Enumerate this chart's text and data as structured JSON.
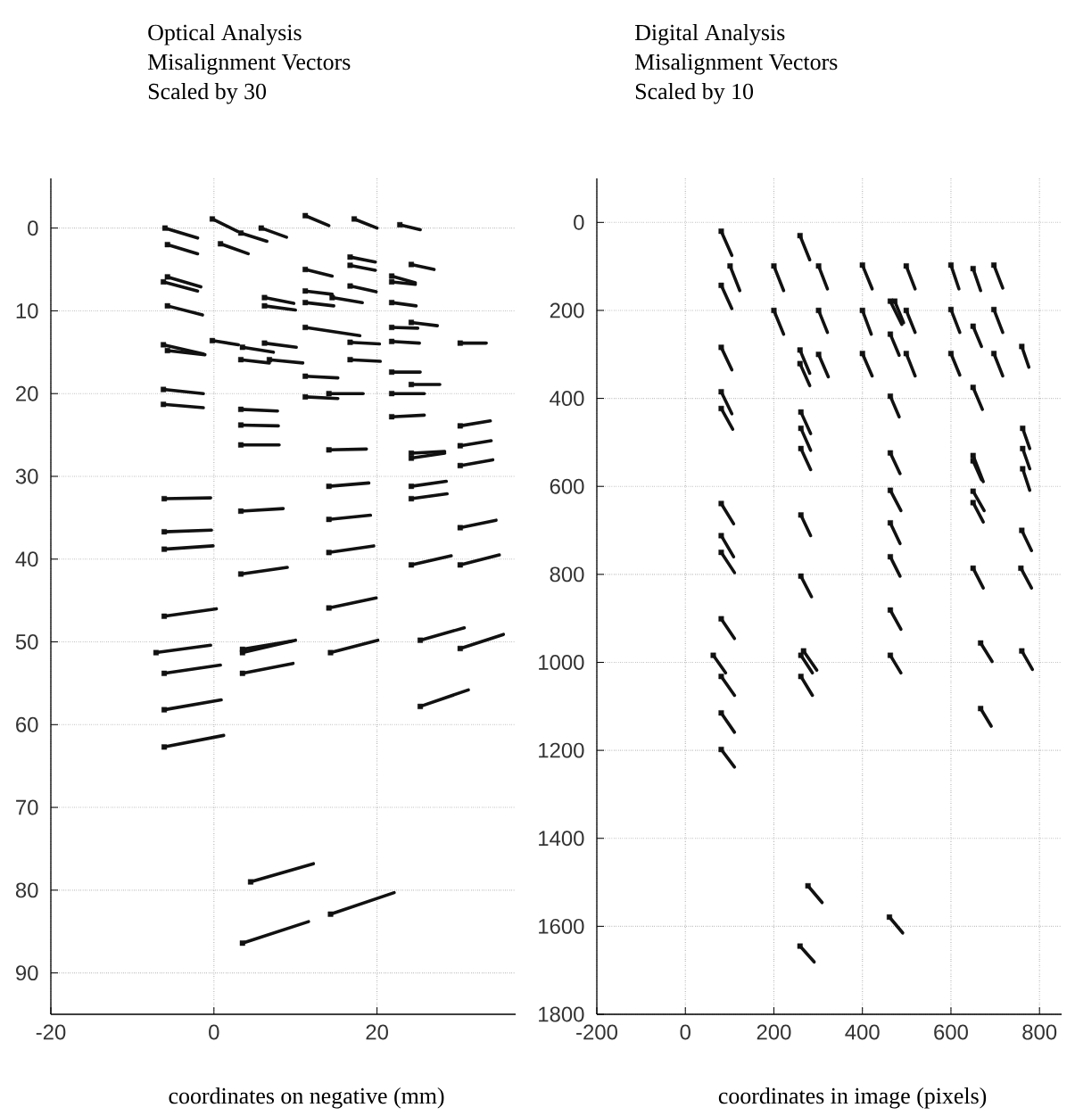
{
  "chart_data": [
    {
      "type": "line",
      "title": "Optical Analysis",
      "subtitle": "Misalignment Vectors",
      "annotations": [
        "Scaled by 30"
      ],
      "xlabel": "coordinates on negative (mm)",
      "color": "#111111",
      "xlim": [
        -20,
        37
      ],
      "ylim": [
        95,
        -6
      ],
      "xticks": [
        -20,
        0,
        20
      ],
      "yticks": [
        0,
        10,
        20,
        30,
        40,
        50,
        60,
        70,
        80,
        90
      ],
      "grid": true,
      "series": [
        {
          "x": [
            -6.0,
            -2.0
          ],
          "values": [
            0.0,
            1.2
          ]
        },
        {
          "x": [
            -5.7,
            -2.0
          ],
          "values": [
            2.0,
            3.1
          ]
        },
        {
          "x": [
            -0.2,
            2.9
          ],
          "values": [
            -1.1,
            0.4
          ]
        },
        {
          "x": [
            3.3,
            6.5
          ],
          "values": [
            0.6,
            1.6
          ]
        },
        {
          "x": [
            5.8,
            8.9
          ],
          "values": [
            0.0,
            1.1
          ]
        },
        {
          "x": [
            0.8,
            4.2
          ],
          "values": [
            1.9,
            3.1
          ]
        },
        {
          "x": [
            11.2,
            14.1
          ],
          "values": [
            -1.5,
            -0.3
          ]
        },
        {
          "x": [
            17.2,
            20.0
          ],
          "values": [
            -1.1,
            0.0
          ]
        },
        {
          "x": [
            22.8,
            25.3
          ],
          "values": [
            -0.4,
            0.2
          ]
        },
        {
          "x": [
            -5.7,
            -1.6
          ],
          "values": [
            5.9,
            7.1
          ]
        },
        {
          "x": [
            -6.2,
            -2.0
          ],
          "values": [
            6.5,
            7.6
          ]
        },
        {
          "x": [
            -5.7,
            -1.4
          ],
          "values": [
            9.4,
            10.5
          ]
        },
        {
          "x": [
            11.2,
            14.5
          ],
          "values": [
            5.0,
            5.8
          ]
        },
        {
          "x": [
            16.7,
            19.8
          ],
          "values": [
            3.5,
            4.1
          ]
        },
        {
          "x": [
            16.7,
            19.8
          ],
          "values": [
            4.5,
            5.1
          ]
        },
        {
          "x": [
            16.7,
            19.9
          ],
          "values": [
            7.0,
            7.7
          ]
        },
        {
          "x": [
            24.2,
            27.0
          ],
          "values": [
            4.4,
            5.0
          ]
        },
        {
          "x": [
            21.8,
            24.7
          ],
          "values": [
            6.5,
            6.8
          ]
        },
        {
          "x": [
            21.8,
            24.7
          ],
          "values": [
            5.8,
            6.6
          ]
        },
        {
          "x": [
            11.2,
            14.5
          ],
          "values": [
            7.6,
            8.0
          ]
        },
        {
          "x": [
            14.5,
            18.2
          ],
          "values": [
            8.4,
            9.0
          ]
        },
        {
          "x": [
            11.2,
            14.7
          ],
          "values": [
            9.0,
            9.4
          ]
        },
        {
          "x": [
            6.2,
            9.8
          ],
          "values": [
            8.4,
            9.1
          ]
        },
        {
          "x": [
            6.2,
            10.0
          ],
          "values": [
            9.4,
            9.9
          ]
        },
        {
          "x": [
            21.8,
            24.8
          ],
          "values": [
            9.0,
            9.4
          ]
        },
        {
          "x": [
            11.2,
            17.9
          ],
          "values": [
            12.0,
            13.0
          ]
        },
        {
          "x": [
            21.8,
            25.0
          ],
          "values": [
            12.0,
            12.1
          ]
        },
        {
          "x": [
            24.2,
            27.4
          ],
          "values": [
            11.4,
            11.8
          ]
        },
        {
          "x": [
            -6.2,
            -1.3
          ],
          "values": [
            14.1,
            15.2
          ]
        },
        {
          "x": [
            -5.7,
            -1.1
          ],
          "values": [
            14.8,
            15.3
          ]
        },
        {
          "x": [
            -0.2,
            3.0
          ],
          "values": [
            13.6,
            14.1
          ]
        },
        {
          "x": [
            3.5,
            7.3
          ],
          "values": [
            14.4,
            15.0
          ]
        },
        {
          "x": [
            6.2,
            10.1
          ],
          "values": [
            13.9,
            14.4
          ]
        },
        {
          "x": [
            3.3,
            6.8
          ],
          "values": [
            15.9,
            16.3
          ]
        },
        {
          "x": [
            6.8,
            10.9
          ],
          "values": [
            15.9,
            16.3
          ]
        },
        {
          "x": [
            16.7,
            20.3
          ],
          "values": [
            13.8,
            14.0
          ]
        },
        {
          "x": [
            16.7,
            20.4
          ],
          "values": [
            15.9,
            16.1
          ]
        },
        {
          "x": [
            21.8,
            25.2
          ],
          "values": [
            13.7,
            13.9
          ]
        },
        {
          "x": [
            30.2,
            33.4
          ],
          "values": [
            13.9,
            13.9
          ]
        },
        {
          "x": [
            11.2,
            15.2
          ],
          "values": [
            17.9,
            18.1
          ]
        },
        {
          "x": [
            11.2,
            15.2
          ],
          "values": [
            20.4,
            20.6
          ]
        },
        {
          "x": [
            14.1,
            18.3
          ],
          "values": [
            20.0,
            20.0
          ]
        },
        {
          "x": [
            21.8,
            25.3
          ],
          "values": [
            17.4,
            17.4
          ]
        },
        {
          "x": [
            24.2,
            27.7
          ],
          "values": [
            18.9,
            18.9
          ]
        },
        {
          "x": [
            21.8,
            25.8
          ],
          "values": [
            20.0,
            20.0
          ]
        },
        {
          "x": [
            21.8,
            25.8
          ],
          "values": [
            22.8,
            22.6
          ]
        },
        {
          "x": [
            -6.2,
            -1.3
          ],
          "values": [
            19.5,
            20.0
          ]
        },
        {
          "x": [
            -6.2,
            -1.3
          ],
          "values": [
            21.3,
            21.7
          ]
        },
        {
          "x": [
            3.3,
            7.8
          ],
          "values": [
            21.9,
            22.1
          ]
        },
        {
          "x": [
            3.3,
            7.9
          ],
          "values": [
            23.8,
            23.9
          ]
        },
        {
          "x": [
            30.2,
            33.9
          ],
          "values": [
            23.9,
            23.3
          ]
        },
        {
          "x": [
            3.3,
            8.0
          ],
          "values": [
            26.2,
            26.2
          ]
        },
        {
          "x": [
            14.1,
            18.7
          ],
          "values": [
            26.8,
            26.7
          ]
        },
        {
          "x": [
            30.2,
            34.0
          ],
          "values": [
            26.3,
            25.7
          ]
        },
        {
          "x": [
            30.2,
            34.2
          ],
          "values": [
            28.7,
            28.0
          ]
        },
        {
          "x": [
            24.2,
            28.3
          ],
          "values": [
            27.2,
            27.0
          ]
        },
        {
          "x": [
            24.2,
            28.3
          ],
          "values": [
            27.8,
            27.2
          ]
        },
        {
          "x": [
            24.2,
            28.5
          ],
          "values": [
            31.2,
            30.6
          ]
        },
        {
          "x": [
            24.2,
            28.6
          ],
          "values": [
            32.7,
            32.1
          ]
        },
        {
          "x": [
            -6.1,
            -0.4
          ],
          "values": [
            32.7,
            32.6
          ]
        },
        {
          "x": [
            3.3,
            8.5
          ],
          "values": [
            34.2,
            33.9
          ]
        },
        {
          "x": [
            14.1,
            19.0
          ],
          "values": [
            31.2,
            30.8
          ]
        },
        {
          "x": [
            14.1,
            19.2
          ],
          "values": [
            35.2,
            34.7
          ]
        },
        {
          "x": [
            30.2,
            34.6
          ],
          "values": [
            36.2,
            35.3
          ]
        },
        {
          "x": [
            -6.1,
            -0.3
          ],
          "values": [
            36.7,
            36.5
          ]
        },
        {
          "x": [
            -6.1,
            -0.1
          ],
          "values": [
            38.8,
            38.4
          ]
        },
        {
          "x": [
            14.1,
            19.6
          ],
          "values": [
            39.2,
            38.4
          ]
        },
        {
          "x": [
            24.2,
            29.1
          ],
          "values": [
            40.7,
            39.6
          ]
        },
        {
          "x": [
            30.2,
            35.0
          ],
          "values": [
            40.7,
            39.5
          ]
        },
        {
          "x": [
            3.3,
            9.0
          ],
          "values": [
            41.8,
            41.0
          ]
        },
        {
          "x": [
            -6.1,
            0.3
          ],
          "values": [
            46.9,
            46.0
          ]
        },
        {
          "x": [
            14.1,
            19.9
          ],
          "values": [
            45.9,
            44.7
          ]
        },
        {
          "x": [
            25.3,
            30.7
          ],
          "values": [
            49.8,
            48.3
          ]
        },
        {
          "x": [
            30.2,
            35.5
          ],
          "values": [
            50.8,
            49.1
          ]
        },
        {
          "x": [
            -7.1,
            -0.4
          ],
          "values": [
            51.3,
            50.4
          ]
        },
        {
          "x": [
            3.5,
            10.0
          ],
          "values": [
            51.3,
            49.8
          ]
        },
        {
          "x": [
            3.5,
            9.6
          ],
          "values": [
            50.9,
            49.9
          ]
        },
        {
          "x": [
            14.3,
            20.1
          ],
          "values": [
            51.3,
            49.8
          ]
        },
        {
          "x": [
            -6.1,
            0.8
          ],
          "values": [
            53.8,
            52.8
          ]
        },
        {
          "x": [
            3.5,
            9.7
          ],
          "values": [
            53.8,
            52.6
          ]
        },
        {
          "x": [
            25.3,
            31.2
          ],
          "values": [
            57.8,
            55.8
          ]
        },
        {
          "x": [
            -6.1,
            0.9
          ],
          "values": [
            58.2,
            57.0
          ]
        },
        {
          "x": [
            -6.1,
            1.2
          ],
          "values": [
            62.7,
            61.3
          ]
        },
        {
          "x": [
            4.5,
            12.2
          ],
          "values": [
            79.0,
            76.8
          ]
        },
        {
          "x": [
            3.5,
            11.6
          ],
          "values": [
            86.4,
            83.8
          ]
        },
        {
          "x": [
            14.3,
            22.1
          ],
          "values": [
            82.9,
            80.3
          ]
        },
        {
          "type": "scatter",
          "marker": "square",
          "x": [
            -6.0,
            -5.7,
            -0.2,
            3.3,
            5.8,
            0.8,
            11.2,
            17.2,
            22.8,
            -5.7,
            -6.2,
            -5.7,
            11.2,
            16.7,
            16.7,
            16.7,
            24.2,
            21.8,
            21.8,
            11.2,
            14.5,
            11.2,
            6.2,
            6.2,
            21.8,
            11.2,
            21.8,
            24.2,
            -6.2,
            -5.7,
            -0.2,
            3.5,
            6.2,
            3.3,
            6.8,
            16.7,
            16.7,
            21.8,
            30.2,
            11.2,
            11.2,
            14.1,
            21.8,
            24.2,
            21.8,
            21.8,
            -6.2,
            -6.2,
            3.3,
            3.3,
            30.2,
            3.3,
            14.1,
            30.2,
            30.2,
            24.2,
            24.2,
            24.2,
            24.2,
            -6.1,
            3.3,
            14.1,
            14.1,
            30.2,
            -6.1,
            -6.1,
            14.1,
            24.2,
            30.2,
            3.3,
            -6.1,
            14.1,
            25.3,
            30.2,
            -7.1,
            3.5,
            3.5,
            14.3,
            -6.1,
            3.5,
            25.3,
            -6.1,
            -6.1,
            4.5,
            3.5,
            14.3
          ],
          "values": [
            0.0,
            2.0,
            -1.1,
            0.6,
            0.0,
            1.9,
            -1.5,
            -1.1,
            -0.4,
            5.9,
            6.5,
            9.4,
            5.0,
            3.5,
            4.5,
            7.0,
            4.4,
            6.5,
            5.8,
            7.6,
            8.4,
            9.0,
            8.4,
            9.4,
            9.0,
            12.0,
            12.0,
            11.4,
            14.1,
            14.8,
            13.6,
            14.4,
            13.9,
            15.9,
            15.9,
            13.8,
            15.9,
            13.7,
            13.9,
            17.9,
            20.4,
            20.0,
            17.4,
            18.9,
            20.0,
            22.8,
            19.5,
            21.3,
            21.9,
            23.8,
            23.9,
            26.2,
            26.8,
            26.3,
            28.7,
            27.2,
            27.8,
            31.2,
            32.7,
            32.7,
            34.2,
            31.2,
            35.2,
            36.2,
            36.7,
            38.8,
            39.2,
            40.7,
            40.7,
            41.8,
            46.9,
            45.9,
            49.8,
            50.8,
            51.3,
            51.3,
            50.9,
            51.3,
            53.8,
            53.8,
            57.8,
            58.2,
            62.7,
            79.0,
            86.4,
            82.9
          ]
        }
      ]
    },
    {
      "type": "line",
      "title": "Digital Analysis",
      "subtitle": "Misalignment Vectors",
      "annotations": [
        "Scaled by 10"
      ],
      "xlabel": "coordinates in image (pixels)",
      "color": "#111111",
      "xlim": [
        -200,
        850
      ],
      "ylim": [
        1800,
        -100
      ],
      "xticks": [
        -200,
        0,
        200,
        400,
        600,
        800
      ],
      "yticks": [
        0,
        200,
        400,
        600,
        800,
        1000,
        1200,
        1400,
        1600,
        1800
      ],
      "grid": true,
      "series": [
        {
          "x": [
            81,
            105
          ],
          "values": [
            20,
            75
          ]
        },
        {
          "x": [
            259,
            281
          ],
          "values": [
            30,
            85
          ]
        },
        {
          "x": [
            101,
            123
          ],
          "values": [
            99,
            155
          ]
        },
        {
          "x": [
            81,
            105
          ],
          "values": [
            143,
            196
          ]
        },
        {
          "x": [
            200,
            222
          ],
          "values": [
            99,
            155
          ]
        },
        {
          "x": [
            301,
            321
          ],
          "values": [
            99,
            151
          ]
        },
        {
          "x": [
            400,
            422
          ],
          "values": [
            97,
            151
          ]
        },
        {
          "x": [
            499,
            519
          ],
          "values": [
            99,
            151
          ]
        },
        {
          "x": [
            600,
            618
          ],
          "values": [
            97,
            151
          ]
        },
        {
          "x": [
            650,
            667
          ],
          "values": [
            105,
            155
          ]
        },
        {
          "x": [
            697,
            717
          ],
          "values": [
            97,
            149
          ]
        },
        {
          "x": [
            200,
            222
          ],
          "values": [
            200,
            254
          ]
        },
        {
          "x": [
            301,
            321
          ],
          "values": [
            200,
            250
          ]
        },
        {
          "x": [
            400,
            420
          ],
          "values": [
            200,
            254
          ]
        },
        {
          "x": [
            463,
            489
          ],
          "values": [
            179,
            232
          ]
        },
        {
          "x": [
            473,
            493
          ],
          "values": [
            179,
            228
          ]
        },
        {
          "x": [
            499,
            519
          ],
          "values": [
            200,
            250
          ]
        },
        {
          "x": [
            600,
            620
          ],
          "values": [
            198,
            250
          ]
        },
        {
          "x": [
            697,
            717
          ],
          "values": [
            198,
            250
          ]
        },
        {
          "x": [
            650,
            669
          ],
          "values": [
            236,
            282
          ]
        },
        {
          "x": [
            463,
            483
          ],
          "values": [
            254,
            302
          ]
        },
        {
          "x": [
            81,
            105
          ],
          "values": [
            284,
            335
          ]
        },
        {
          "x": [
            259,
            281
          ],
          "values": [
            290,
            343
          ]
        },
        {
          "x": [
            259,
            281
          ],
          "values": [
            321,
            371
          ]
        },
        {
          "x": [
            301,
            323
          ],
          "values": [
            300,
            351
          ]
        },
        {
          "x": [
            400,
            422
          ],
          "values": [
            298,
            349
          ]
        },
        {
          "x": [
            499,
            519
          ],
          "values": [
            298,
            349
          ]
        },
        {
          "x": [
            600,
            620
          ],
          "values": [
            298,
            347
          ]
        },
        {
          "x": [
            697,
            717
          ],
          "values": [
            298,
            349
          ]
        },
        {
          "x": [
            760,
            776
          ],
          "values": [
            282,
            329
          ]
        },
        {
          "x": [
            81,
            105
          ],
          "values": [
            385,
            435
          ]
        },
        {
          "x": [
            81,
            107
          ],
          "values": [
            423,
            470
          ]
        },
        {
          "x": [
            463,
            483
          ],
          "values": [
            395,
            442
          ]
        },
        {
          "x": [
            650,
            671
          ],
          "values": [
            375,
            425
          ]
        },
        {
          "x": [
            261,
            283
          ],
          "values": [
            431,
            480
          ]
        },
        {
          "x": [
            261,
            283
          ],
          "values": [
            468,
            518
          ]
        },
        {
          "x": [
            261,
            283
          ],
          "values": [
            514,
            562
          ]
        },
        {
          "x": [
            762,
            778
          ],
          "values": [
            468,
            514
          ]
        },
        {
          "x": [
            762,
            778
          ],
          "values": [
            514,
            560
          ]
        },
        {
          "x": [
            762,
            778
          ],
          "values": [
            560,
            609
          ]
        },
        {
          "x": [
            463,
            485
          ],
          "values": [
            524,
            571
          ]
        },
        {
          "x": [
            650,
            673
          ],
          "values": [
            530,
            589
          ]
        },
        {
          "x": [
            650,
            669
          ],
          "values": [
            542,
            585
          ]
        },
        {
          "x": [
            463,
            487
          ],
          "values": [
            609,
            655
          ]
        },
        {
          "x": [
            650,
            675
          ],
          "values": [
            611,
            655
          ]
        },
        {
          "x": [
            650,
            673
          ],
          "values": [
            637,
            681
          ]
        },
        {
          "x": [
            81,
            109
          ],
          "values": [
            639,
            685
          ]
        },
        {
          "x": [
            261,
            283
          ],
          "values": [
            665,
            712
          ]
        },
        {
          "x": [
            463,
            485
          ],
          "values": [
            683,
            730
          ]
        },
        {
          "x": [
            760,
            782
          ],
          "values": [
            700,
            746
          ]
        },
        {
          "x": [
            81,
            109
          ],
          "values": [
            712,
            760
          ]
        },
        {
          "x": [
            81,
            111
          ],
          "values": [
            750,
            796
          ]
        },
        {
          "x": [
            463,
            485
          ],
          "values": [
            760,
            804
          ]
        },
        {
          "x": [
            650,
            673
          ],
          "values": [
            786,
            831
          ]
        },
        {
          "x": [
            758,
            782
          ],
          "values": [
            786,
            831
          ]
        },
        {
          "x": [
            261,
            285
          ],
          "values": [
            804,
            851
          ]
        },
        {
          "x": [
            463,
            487
          ],
          "values": [
            881,
            925
          ]
        },
        {
          "x": [
            81,
            111
          ],
          "values": [
            901,
            946
          ]
        },
        {
          "x": [
            667,
            693
          ],
          "values": [
            956,
            998
          ]
        },
        {
          "x": [
            760,
            784
          ],
          "values": [
            974,
            1016
          ]
        },
        {
          "x": [
            63,
            91
          ],
          "values": [
            984,
            1024
          ]
        },
        {
          "x": [
            81,
            111
          ],
          "values": [
            1032,
            1075
          ]
        },
        {
          "x": [
            261,
            287
          ],
          "values": [
            984,
            1024
          ]
        },
        {
          "x": [
            267,
            297
          ],
          "values": [
            974,
            1018
          ]
        },
        {
          "x": [
            261,
            287
          ],
          "values": [
            1032,
            1075
          ]
        },
        {
          "x": [
            463,
            487
          ],
          "values": [
            984,
            1024
          ]
        },
        {
          "x": [
            81,
            111
          ],
          "values": [
            1115,
            1159
          ]
        },
        {
          "x": [
            667,
            691
          ],
          "values": [
            1105,
            1145
          ]
        },
        {
          "x": [
            81,
            111
          ],
          "values": [
            1198,
            1238
          ]
        },
        {
          "x": [
            277,
            309
          ],
          "values": [
            1508,
            1546
          ]
        },
        {
          "x": [
            461,
            491
          ],
          "values": [
            1579,
            1615
          ]
        },
        {
          "x": [
            259,
            291
          ],
          "values": [
            1645,
            1681
          ]
        },
        {
          "type": "scatter",
          "marker": "square",
          "x": [
            81,
            259,
            101,
            81,
            200,
            301,
            400,
            499,
            600,
            650,
            697,
            200,
            301,
            400,
            463,
            473,
            499,
            600,
            697,
            650,
            463,
            81,
            259,
            259,
            301,
            400,
            499,
            600,
            697,
            760,
            81,
            81,
            463,
            650,
            261,
            261,
            261,
            762,
            762,
            762,
            463,
            650,
            650,
            463,
            650,
            650,
            81,
            261,
            463,
            760,
            81,
            81,
            463,
            650,
            758,
            261,
            463,
            81,
            667,
            760,
            63,
            81,
            261,
            267,
            261,
            463,
            81,
            667,
            81,
            277,
            461,
            259
          ],
          "values": [
            20,
            30,
            99,
            143,
            99,
            99,
            97,
            99,
            97,
            105,
            97,
            200,
            200,
            200,
            179,
            179,
            200,
            198,
            198,
            236,
            254,
            284,
            290,
            321,
            300,
            298,
            298,
            298,
            298,
            282,
            385,
            423,
            395,
            375,
            431,
            468,
            514,
            468,
            514,
            560,
            524,
            530,
            542,
            609,
            611,
            637,
            639,
            665,
            683,
            700,
            712,
            750,
            760,
            786,
            786,
            804,
            881,
            901,
            956,
            974,
            984,
            1032,
            984,
            974,
            1032,
            984,
            1115,
            1105,
            1198,
            1508,
            1579,
            1645
          ]
        }
      ]
    }
  ]
}
